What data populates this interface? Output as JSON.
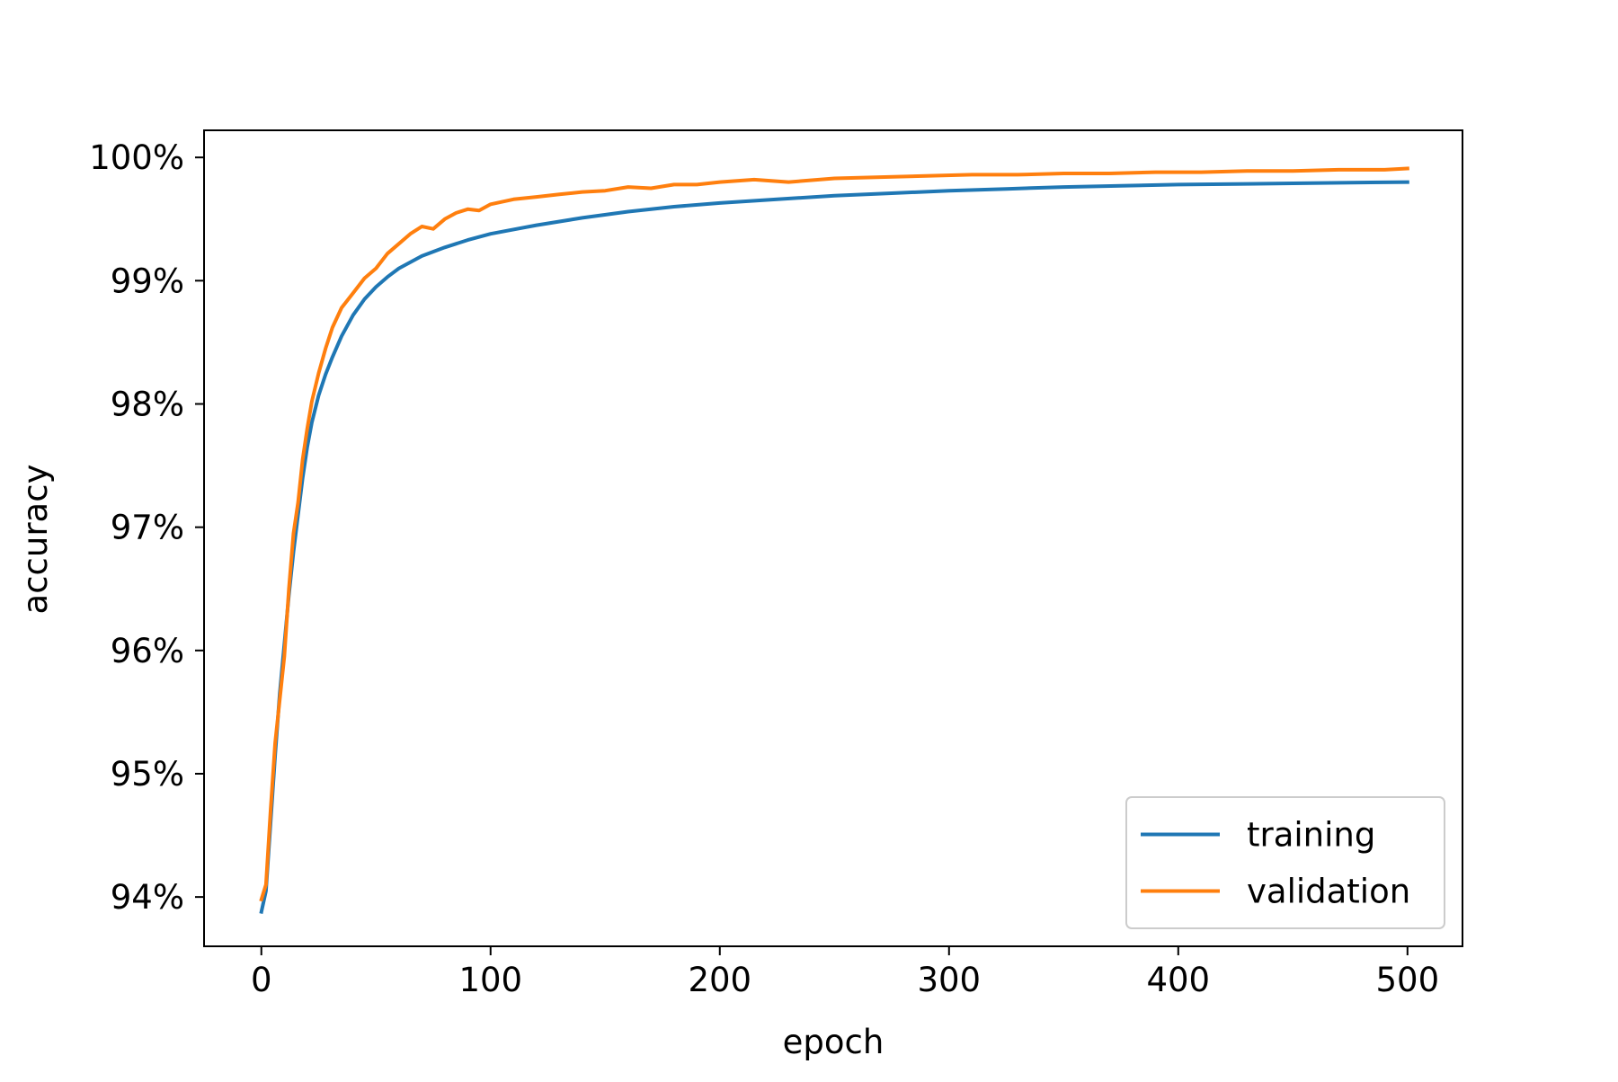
{
  "chart_data": {
    "type": "line",
    "title": "",
    "xlabel": "epoch",
    "ylabel": "accuracy",
    "xlim": [
      -25,
      524
    ],
    "ylim": [
      93.6,
      100.22
    ],
    "x_ticks": [
      0,
      100,
      200,
      300,
      400,
      500
    ],
    "x_tick_labels": [
      "0",
      "100",
      "200",
      "300",
      "400",
      "500"
    ],
    "y_ticks": [
      94,
      95,
      96,
      97,
      98,
      99,
      100
    ],
    "y_tick_labels": [
      "94%",
      "95%",
      "96%",
      "97%",
      "98%",
      "99%",
      "100%"
    ],
    "grid": false,
    "legend_position": "lower-right",
    "series": [
      {
        "name": "training",
        "color": "#1f77b4",
        "x": [
          0,
          2,
          4,
          6,
          8,
          10,
          12,
          14,
          16,
          18,
          20,
          22,
          25,
          28,
          31,
          35,
          40,
          45,
          50,
          55,
          60,
          70,
          80,
          90,
          100,
          120,
          140,
          160,
          180,
          200,
          225,
          250,
          275,
          300,
          325,
          350,
          375,
          400,
          425,
          450,
          475,
          500
        ],
        "y": [
          93.88,
          94.05,
          94.6,
          95.15,
          95.65,
          96.05,
          96.45,
          96.8,
          97.1,
          97.4,
          97.65,
          97.85,
          98.07,
          98.24,
          98.38,
          98.55,
          98.72,
          98.85,
          98.95,
          99.03,
          99.1,
          99.2,
          99.27,
          99.33,
          99.38,
          99.45,
          99.51,
          99.56,
          99.6,
          99.63,
          99.66,
          99.69,
          99.71,
          99.73,
          99.745,
          99.76,
          99.77,
          99.78,
          99.785,
          99.79,
          99.795,
          99.8
        ]
      },
      {
        "name": "validation",
        "color": "#ff7f0e",
        "x": [
          0,
          2,
          4,
          6,
          8,
          10,
          12,
          14,
          16,
          18,
          20,
          22,
          25,
          28,
          31,
          35,
          40,
          45,
          50,
          55,
          60,
          65,
          70,
          75,
          80,
          85,
          90,
          95,
          100,
          110,
          120,
          130,
          140,
          150,
          160,
          170,
          180,
          190,
          200,
          215,
          230,
          250,
          270,
          290,
          310,
          330,
          350,
          370,
          390,
          410,
          430,
          450,
          470,
          490,
          500
        ],
        "y": [
          93.98,
          94.1,
          94.7,
          95.25,
          95.6,
          95.95,
          96.5,
          96.95,
          97.2,
          97.55,
          97.8,
          98.02,
          98.25,
          98.45,
          98.62,
          98.78,
          98.9,
          99.02,
          99.1,
          99.22,
          99.3,
          99.38,
          99.44,
          99.42,
          99.5,
          99.55,
          99.58,
          99.57,
          99.62,
          99.66,
          99.68,
          99.7,
          99.72,
          99.73,
          99.76,
          99.75,
          99.78,
          99.78,
          99.8,
          99.82,
          99.8,
          99.83,
          99.84,
          99.85,
          99.86,
          99.86,
          99.87,
          99.87,
          99.88,
          99.88,
          99.89,
          99.89,
          99.9,
          99.9,
          99.91
        ]
      }
    ]
  }
}
